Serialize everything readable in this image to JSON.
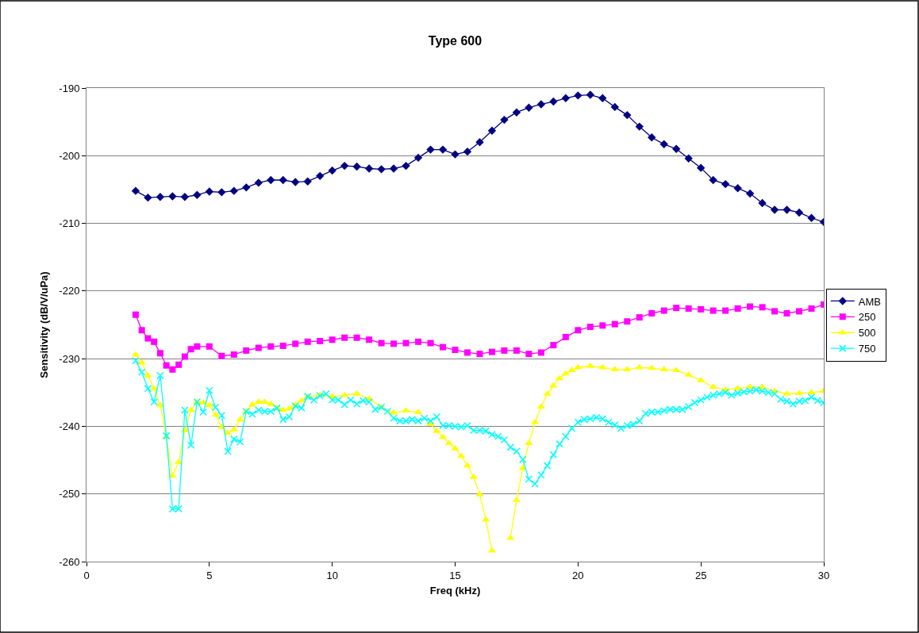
{
  "chart_data": {
    "type": "line",
    "title": "Type 600",
    "xlabel": "Freq (kHz)",
    "ylabel": "Sensitivity (dB/V/uPa)",
    "xlim": [
      0,
      30
    ],
    "xticks": [
      0,
      5,
      10,
      15,
      20,
      25,
      30
    ],
    "ylim": [
      -260,
      -190
    ],
    "yticks": [
      -260,
      -250,
      -240,
      -230,
      -220,
      -210,
      -200,
      -190
    ],
    "grid": "y",
    "legend": "right",
    "line_style": "solid",
    "series": [
      {
        "name": "AMB",
        "color": "#000080",
        "marker": "diamond",
        "x": [
          2,
          2.5,
          3,
          3.5,
          4,
          4.5,
          5,
          5.5,
          6,
          6.5,
          7,
          7.5,
          8,
          8.5,
          9,
          9.5,
          10,
          10.5,
          11,
          11.5,
          12,
          12.5,
          13,
          13.5,
          14,
          14.5,
          15,
          15.5,
          16,
          16.5,
          17,
          17.5,
          18,
          18.5,
          19,
          19.5,
          20,
          20.5,
          21,
          21.5,
          22,
          22.5,
          23,
          23.5,
          24,
          24.5,
          25,
          25.5,
          26,
          26.5,
          27,
          27.5,
          28,
          28.5,
          29,
          29.5,
          30
        ],
        "values": [
          -205.2,
          -206.2,
          -206.1,
          -206.0,
          -206.1,
          -205.8,
          -205.3,
          -205.4,
          -205.2,
          -204.7,
          -204.0,
          -203.6,
          -203.6,
          -203.9,
          -203.8,
          -203.0,
          -202.2,
          -201.5,
          -201.6,
          -201.9,
          -202.0,
          -201.9,
          -201.5,
          -200.3,
          -199.1,
          -199.1,
          -199.8,
          -199.4,
          -198.0,
          -196.3,
          -194.7,
          -193.6,
          -192.9,
          -192.4,
          -192.0,
          -191.5,
          -191.1,
          -191.0,
          -191.5,
          -192.8,
          -194.0,
          -195.7,
          -197.3,
          -198.3,
          -199.0,
          -200.4,
          -201.8,
          -203.6,
          -204.2,
          -204.8,
          -205.6,
          -207.0,
          -208.0,
          -208.0,
          -208.4,
          -209.2,
          -209.8
        ]
      },
      {
        "name": "250",
        "color": "#ff00ff",
        "marker": "square",
        "x": [
          2,
          2.25,
          2.5,
          2.75,
          3,
          3.25,
          3.5,
          3.75,
          4,
          4.25,
          4.5,
          5,
          5.5,
          6,
          6.5,
          7,
          7.5,
          8,
          8.5,
          9,
          9.5,
          10,
          10.5,
          11,
          11.5,
          12,
          12.5,
          13,
          13.5,
          14,
          14.5,
          15,
          15.5,
          16,
          16.5,
          17,
          17.5,
          18,
          18.5,
          19,
          19.5,
          20,
          20.5,
          21,
          21.5,
          22,
          22.5,
          23,
          23.5,
          24,
          24.5,
          25,
          25.5,
          26,
          26.5,
          27,
          27.5,
          28,
          28.5,
          29,
          29.5,
          30
        ],
        "values": [
          -223.5,
          -225.8,
          -227.0,
          -227.5,
          -229.2,
          -231.0,
          -231.6,
          -230.9,
          -229.7,
          -228.6,
          -228.2,
          -228.2,
          -229.6,
          -229.4,
          -228.8,
          -228.4,
          -228.2,
          -228.1,
          -227.8,
          -227.5,
          -227.4,
          -227.2,
          -226.9,
          -226.9,
          -227.2,
          -227.7,
          -227.8,
          -227.7,
          -227.5,
          -227.7,
          -228.3,
          -228.7,
          -229.1,
          -229.3,
          -229.0,
          -228.8,
          -228.8,
          -229.3,
          -229.1,
          -228.0,
          -226.8,
          -225.8,
          -225.3,
          -225.1,
          -224.9,
          -224.5,
          -223.9,
          -223.3,
          -222.9,
          -222.5,
          -222.6,
          -222.7,
          -222.9,
          -222.9,
          -222.6,
          -222.3,
          -222.4,
          -223.0,
          -223.3,
          -223.0,
          -222.6,
          -222.0
        ]
      },
      {
        "name": "500",
        "color": "#ffff00",
        "marker": "triangle",
        "x": [
          2,
          2.25,
          2.5,
          2.75,
          3,
          3.25,
          3.5,
          3.75,
          4,
          4.25,
          4.5,
          4.75,
          5,
          5.25,
          5.5,
          5.75,
          6,
          6.25,
          6.5,
          6.75,
          7,
          7.25,
          7.5,
          7.75,
          8,
          8.25,
          8.5,
          8.75,
          9,
          9.5,
          10,
          10.5,
          11,
          11.5,
          12,
          12.5,
          13,
          13.5,
          14,
          14.25,
          14.5,
          14.75,
          15,
          15.25,
          15.5,
          15.75,
          16,
          16.25,
          16.5,
          16.75,
          17,
          17.25,
          17.5,
          17.75,
          18,
          18.25,
          18.5,
          18.75,
          19,
          19.25,
          19.5,
          19.75,
          20,
          20.5,
          21,
          21.5,
          22,
          22.5,
          23,
          23.5,
          24,
          24.5,
          25,
          25.5,
          26,
          26.5,
          27,
          27.5,
          28,
          28.5,
          29,
          29.5,
          30
        ],
        "values": [
          -229.4,
          -230.6,
          -232.5,
          -234.4,
          -236.9,
          -241.6,
          -247.3,
          -245.3,
          -240.6,
          -237.6,
          -236.4,
          -236.5,
          -236.9,
          -238.3,
          -240.1,
          -241.0,
          -240.5,
          -239.0,
          -237.8,
          -236.8,
          -236.4,
          -236.4,
          -236.7,
          -237.3,
          -237.6,
          -237.4,
          -236.8,
          -236.2,
          -235.6,
          -235.4,
          -235.6,
          -235.4,
          -235.2,
          -235.9,
          -237.2,
          -238.0,
          -237.7,
          -237.9,
          -239.7,
          -240.7,
          -241.6,
          -242.5,
          -243.3,
          -244.4,
          -245.8,
          -247.5,
          -250.1,
          -253.8,
          -258.4,
          null,
          null,
          -256.5,
          -250.9,
          -246.2,
          -242.5,
          -239.4,
          -237.1,
          -235.2,
          -234.0,
          -232.9,
          -232.2,
          -231.7,
          -231.3,
          -231.1,
          -231.3,
          -231.6,
          -231.6,
          -231.3,
          -231.4,
          -231.6,
          -231.7,
          -232.4,
          -233.2,
          -234.2,
          -234.6,
          -234.4,
          -234.2,
          -234.2,
          -234.8,
          -235.2,
          -235.1,
          -235.0,
          -234.8
        ]
      },
      {
        "name": "750",
        "color": "#00ffff",
        "marker": "cross",
        "x": [
          2,
          2.25,
          2.5,
          2.75,
          3,
          3.25,
          3.5,
          3.75,
          4,
          4.25,
          4.5,
          4.75,
          5,
          5.25,
          5.5,
          5.75,
          6,
          6.25,
          6.5,
          6.75,
          7,
          7.25,
          7.5,
          7.75,
          8,
          8.25,
          8.5,
          8.75,
          9,
          9.25,
          9.5,
          9.75,
          10,
          10.25,
          10.5,
          10.75,
          11,
          11.25,
          11.5,
          11.75,
          12,
          12.25,
          12.5,
          12.75,
          13,
          13.25,
          13.5,
          13.75,
          14,
          14.25,
          14.5,
          14.75,
          15,
          15.25,
          15.5,
          15.75,
          16,
          16.25,
          16.5,
          16.75,
          17,
          17.25,
          17.5,
          17.75,
          18,
          18.25,
          18.5,
          18.75,
          19,
          19.25,
          19.5,
          19.75,
          20,
          20.25,
          20.5,
          20.75,
          21,
          21.25,
          21.5,
          21.75,
          22,
          22.25,
          22.5,
          22.75,
          23,
          23.25,
          23.5,
          23.75,
          24,
          24.25,
          24.5,
          24.75,
          25,
          25.25,
          25.5,
          25.75,
          26,
          26.25,
          26.5,
          26.75,
          27,
          27.25,
          27.5,
          27.75,
          28,
          28.25,
          28.5,
          28.75,
          29,
          29.25,
          29.5,
          29.75,
          30
        ],
        "values": [
          -230.3,
          -232.0,
          -234.4,
          -236.4,
          -232.5,
          -241.4,
          -252.2,
          -252.2,
          -237.6,
          -242.8,
          -236.4,
          -237.9,
          -234.7,
          -237.2,
          -238.4,
          -243.7,
          -241.9,
          -242.3,
          -237.8,
          -238.2,
          -237.6,
          -237.8,
          -237.8,
          -237.3,
          -239.0,
          -238.6,
          -237.0,
          -237.3,
          -235.6,
          -236.1,
          -235.5,
          -235.2,
          -236.1,
          -236.1,
          -236.8,
          -236.1,
          -236.7,
          -236.2,
          -236.4,
          -237.5,
          -237.2,
          -237.8,
          -238.8,
          -239.2,
          -239.2,
          -239.0,
          -239.2,
          -238.8,
          -239.2,
          -238.6,
          -239.9,
          -239.9,
          -240.0,
          -240.1,
          -239.9,
          -240.6,
          -240.6,
          -240.7,
          -241.2,
          -241.5,
          -242.0,
          -243.1,
          -243.7,
          -244.9,
          -247.8,
          -248.5,
          -247.2,
          -245.8,
          -244.2,
          -242.6,
          -241.5,
          -240.3,
          -239.4,
          -239.0,
          -238.9,
          -238.7,
          -238.9,
          -239.4,
          -239.8,
          -240.3,
          -239.9,
          -239.7,
          -239.2,
          -238.1,
          -237.9,
          -237.9,
          -237.7,
          -237.5,
          -237.5,
          -237.5,
          -237.1,
          -236.5,
          -236.1,
          -235.7,
          -235.4,
          -235.2,
          -235.0,
          -235.4,
          -235.1,
          -234.9,
          -234.8,
          -234.6,
          -234.8,
          -235.0,
          -235.2,
          -236.0,
          -236.3,
          -236.7,
          -236.3,
          -236.2,
          -235.7,
          -236.2,
          -236.5
        ]
      }
    ]
  }
}
